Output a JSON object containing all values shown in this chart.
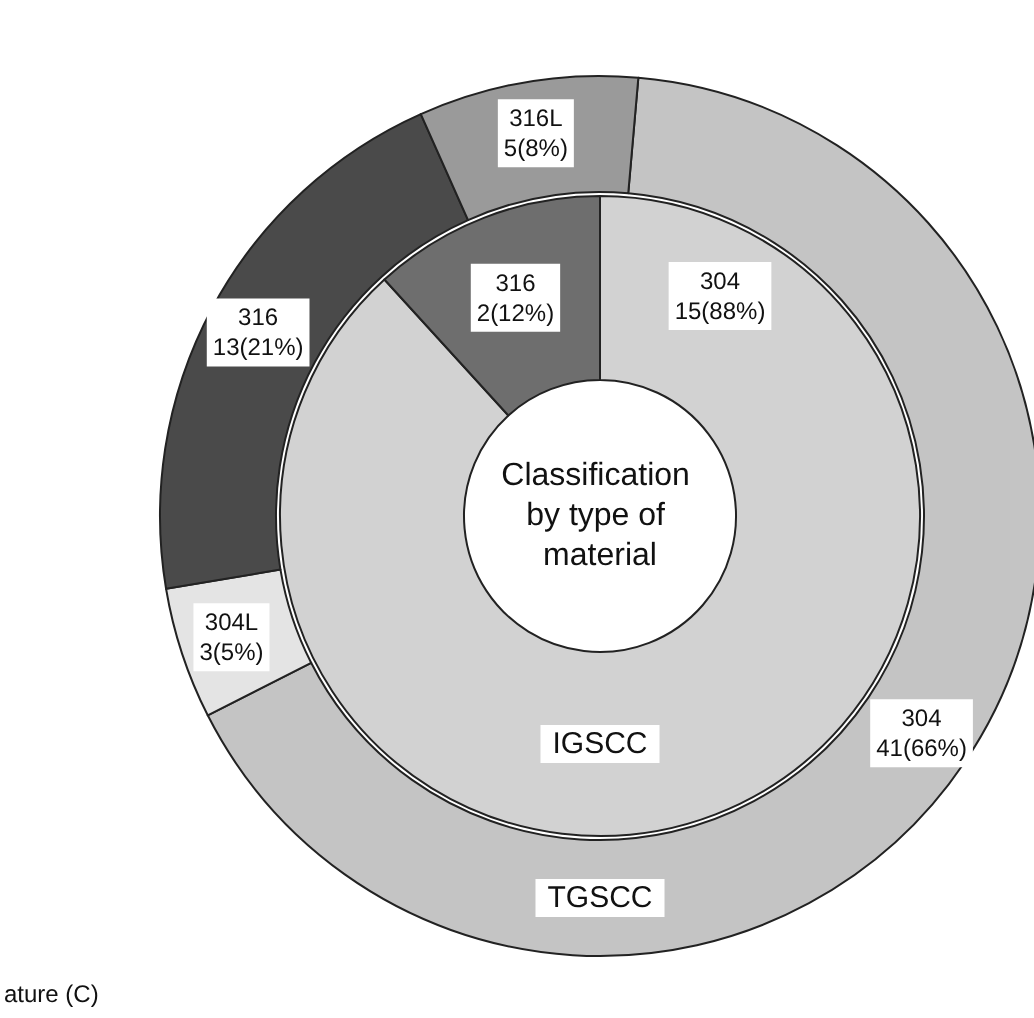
{
  "chart_data": [
    {
      "type": "donut",
      "title": "IGSCC",
      "annotations": [
        "Classification by type of material"
      ],
      "categories": [
        "304",
        "316"
      ],
      "values": [
        15,
        2
      ],
      "value_labels": [
        "15(88%)",
        "2(12%)"
      ],
      "colors": [
        "#d2d2d2",
        "#6e6e6e"
      ]
    },
    {
      "type": "donut",
      "title": "TGSCC",
      "annotations": [
        "ature (C)"
      ],
      "categories": [
        "304",
        "304L",
        "316",
        "316L"
      ],
      "values": [
        41,
        3,
        13,
        5
      ],
      "value_labels": [
        "41(66%)",
        "3(5%)",
        "13(21%)",
        "5(8%)"
      ],
      "colors": [
        "#c4c4c4",
        "#e4e4e4",
        "#4a4a4a",
        "#9a9a9a"
      ]
    }
  ]
}
